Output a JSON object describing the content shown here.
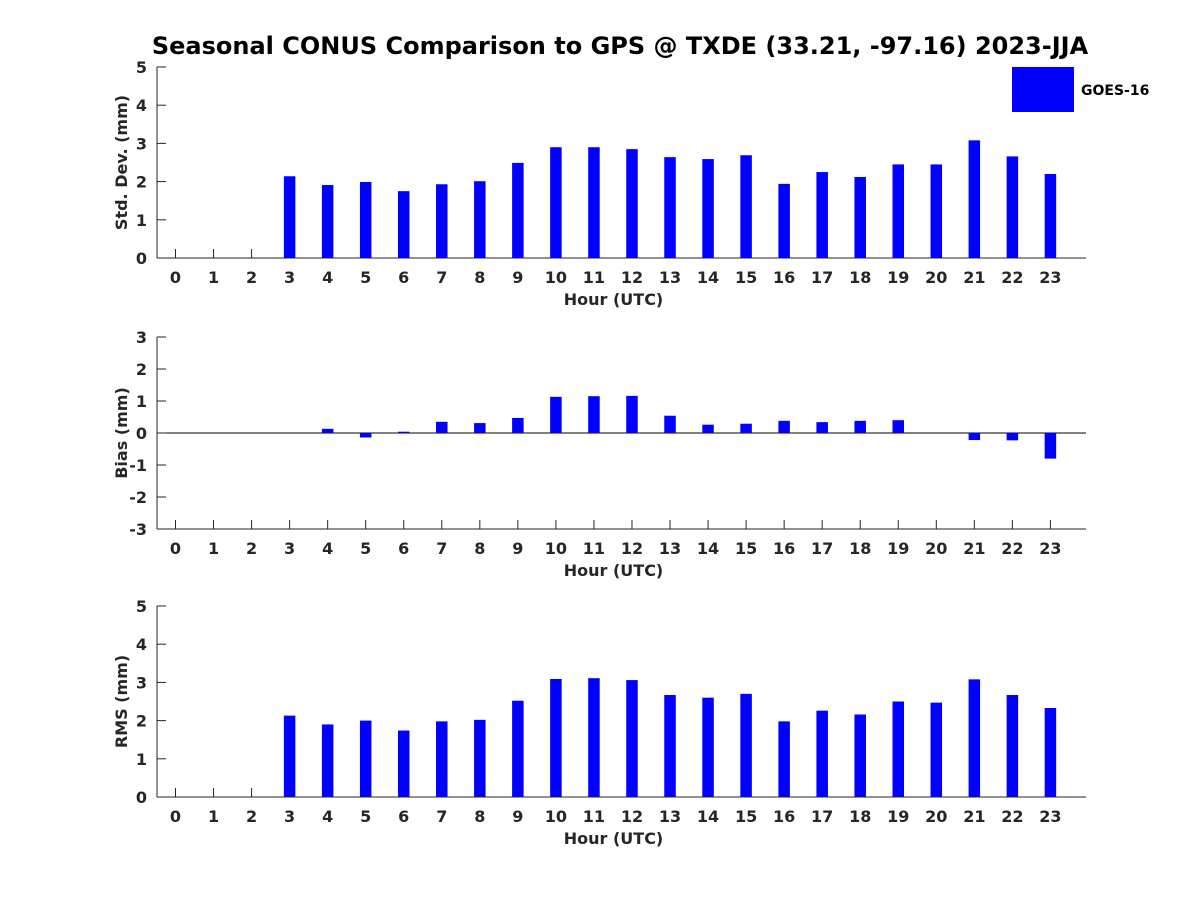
{
  "title": "Seasonal CONUS Comparison to GPS @ TXDE (33.21, -97.16) 2023-JJA",
  "legend": {
    "label": "GOES-16",
    "color": "#0000ff"
  },
  "chart_data": [
    {
      "type": "bar",
      "ylabel": "Std. Dev. (mm)",
      "xlabel": "Hour (UTC)",
      "categories": [
        "0",
        "1",
        "2",
        "3",
        "4",
        "5",
        "6",
        "7",
        "8",
        "9",
        "10",
        "11",
        "12",
        "13",
        "14",
        "15",
        "16",
        "17",
        "18",
        "19",
        "20",
        "21",
        "22",
        "23"
      ],
      "ylim": [
        0,
        5
      ],
      "yticks": [
        "0",
        "1",
        "2",
        "3",
        "4",
        "5"
      ],
      "series": [
        {
          "name": "GOES-16",
          "color": "#0000ff",
          "values": [
            null,
            null,
            null,
            2.14,
            1.91,
            1.99,
            1.75,
            1.93,
            2.01,
            2.49,
            2.9,
            2.9,
            2.85,
            2.64,
            2.59,
            2.69,
            1.94,
            2.25,
            2.12,
            2.45,
            2.45,
            3.08,
            2.66,
            2.2
          ]
        }
      ]
    },
    {
      "type": "bar",
      "ylabel": "Bias (mm)",
      "xlabel": "Hour (UTC)",
      "categories": [
        "0",
        "1",
        "2",
        "3",
        "4",
        "5",
        "6",
        "7",
        "8",
        "9",
        "10",
        "11",
        "12",
        "13",
        "14",
        "15",
        "16",
        "17",
        "18",
        "19",
        "20",
        "21",
        "22",
        "23"
      ],
      "ylim": [
        -3,
        3
      ],
      "yticks": [
        "-3",
        "-2",
        "-1",
        "0",
        "1",
        "2",
        "3"
      ],
      "series": [
        {
          "values": [
            null,
            null,
            null,
            0.0,
            0.13,
            -0.14,
            0.04,
            0.35,
            0.31,
            0.47,
            1.13,
            1.15,
            1.16,
            0.54,
            0.26,
            0.29,
            0.38,
            0.34,
            0.38,
            0.4,
            0.0,
            -0.22,
            -0.23,
            -0.8
          ]
        }
      ]
    },
    {
      "type": "bar",
      "ylabel": "RMS (mm)",
      "xlabel": "Hour (UTC)",
      "categories": [
        "0",
        "1",
        "2",
        "3",
        "4",
        "5",
        "6",
        "7",
        "8",
        "9",
        "10",
        "11",
        "12",
        "13",
        "14",
        "15",
        "16",
        "17",
        "18",
        "19",
        "20",
        "21",
        "22",
        "23"
      ],
      "ylim": [
        0,
        5
      ],
      "yticks": [
        "0",
        "1",
        "2",
        "3",
        "4",
        "5"
      ],
      "series": [
        {
          "values": [
            null,
            null,
            null,
            2.13,
            1.9,
            2.0,
            1.74,
            1.98,
            2.02,
            2.52,
            3.09,
            3.11,
            3.06,
            2.67,
            2.6,
            2.7,
            1.98,
            2.26,
            2.16,
            2.5,
            2.47,
            3.08,
            2.67,
            2.33
          ]
        }
      ]
    }
  ]
}
